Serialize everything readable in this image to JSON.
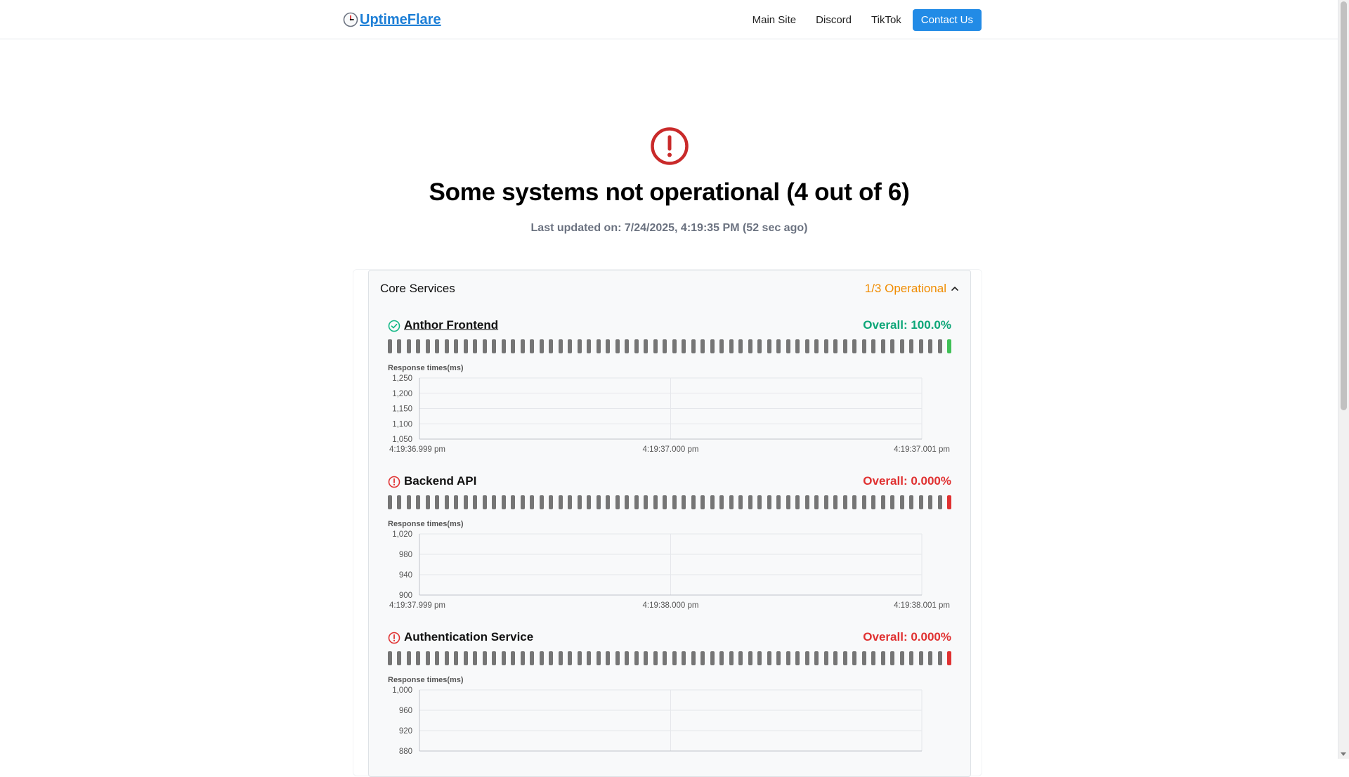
{
  "brand": {
    "name": "UptimeFlare",
    "icon": "clock-icon"
  },
  "nav": {
    "main_site": "Main Site",
    "discord": "Discord",
    "tiktok": "TikTok",
    "contact": "Contact Us"
  },
  "colors": {
    "accent": "#228be6",
    "ok": "#12b886",
    "error": "#e03131",
    "warn": "#f08c00",
    "bar_idle": "#757575"
  },
  "status": {
    "icon": "alert-circle-icon",
    "headline": "Some systems not operational (4 out of 6)",
    "last_updated": "Last updated on: 7/24/2025, 4:19:35 PM (52 sec ago)"
  },
  "group": {
    "title": "Core Services",
    "status": "1/3 Operational",
    "expanded": true
  },
  "monitors": [
    {
      "name": "Anthor Frontend",
      "linked": true,
      "state": "up",
      "overall": "Overall: 100.0%",
      "bar_count": 60,
      "chart_label": "Response times(ms)",
      "y_ticks": [
        "1,250",
        "1,200",
        "1,150",
        "1,100",
        "1,050"
      ],
      "x_ticks": [
        "4:19:36.999 pm",
        "4:19:37.000 pm",
        "4:19:37.001 pm"
      ]
    },
    {
      "name": "Backend API",
      "linked": false,
      "state": "down",
      "overall": "Overall: 0.000%",
      "bar_count": 60,
      "chart_label": "Response times(ms)",
      "y_ticks": [
        "1,020",
        "980",
        "940",
        "900"
      ],
      "x_ticks": [
        "4:19:37.999 pm",
        "4:19:38.000 pm",
        "4:19:38.001 pm"
      ]
    },
    {
      "name": "Authentication Service",
      "linked": false,
      "state": "down",
      "overall": "Overall: 0.000%",
      "bar_count": 60,
      "chart_label": "Response times(ms)",
      "y_ticks": [
        "1,000",
        "960",
        "920",
        "880"
      ],
      "x_ticks": []
    }
  ]
}
